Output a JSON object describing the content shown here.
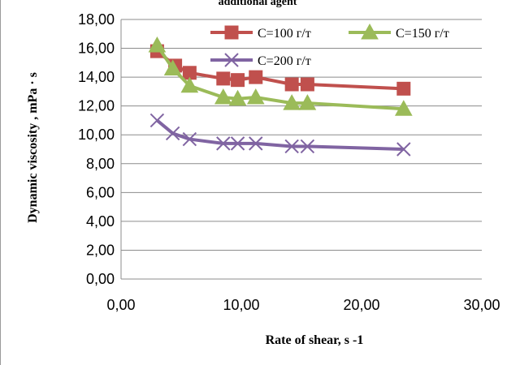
{
  "chart_data": {
    "type": "line",
    "title": "additional agent",
    "xlabel": "Rate of shear, s -1",
    "ylabel": "Dynamic viscosity , mPa · s",
    "xlim": [
      0,
      30
    ],
    "ylim": [
      0,
      18
    ],
    "x_ticks": [
      "0,00",
      "10,00",
      "20,00",
      "30,00"
    ],
    "y_ticks": [
      "0,00",
      "2,00",
      "4,00",
      "6,00",
      "8,00",
      "10,00",
      "12,00",
      "14,00",
      "16,00",
      "18,00"
    ],
    "grid": "horizontal",
    "legend_position": "top-right",
    "series": [
      {
        "name": "C=100 г/т",
        "color": "#c0504d",
        "marker": "square",
        "points": [
          [
            3.0,
            15.8
          ],
          [
            4.5,
            14.8
          ],
          [
            5.7,
            14.3
          ],
          [
            8.5,
            13.9
          ],
          [
            9.7,
            13.8
          ],
          [
            11.2,
            14.0
          ],
          [
            14.2,
            13.5
          ],
          [
            15.5,
            13.5
          ],
          [
            23.5,
            13.2
          ]
        ]
      },
      {
        "name": "C=150 г/т",
        "color": "#9bbb59",
        "marker": "triangle",
        "points": [
          [
            3.0,
            16.2
          ],
          [
            4.3,
            14.6
          ],
          [
            5.7,
            13.4
          ],
          [
            8.5,
            12.6
          ],
          [
            9.7,
            12.5
          ],
          [
            11.2,
            12.6
          ],
          [
            14.2,
            12.2
          ],
          [
            15.5,
            12.2
          ],
          [
            23.5,
            11.8
          ]
        ]
      },
      {
        "name": "C=200 г/т",
        "color": "#8064a2",
        "marker": "x",
        "points": [
          [
            3.0,
            11.0
          ],
          [
            4.3,
            10.1
          ],
          [
            5.7,
            9.7
          ],
          [
            8.5,
            9.4
          ],
          [
            9.7,
            9.4
          ],
          [
            11.2,
            9.4
          ],
          [
            14.2,
            9.2
          ],
          [
            15.5,
            9.2
          ],
          [
            23.5,
            9.0
          ]
        ]
      }
    ]
  }
}
